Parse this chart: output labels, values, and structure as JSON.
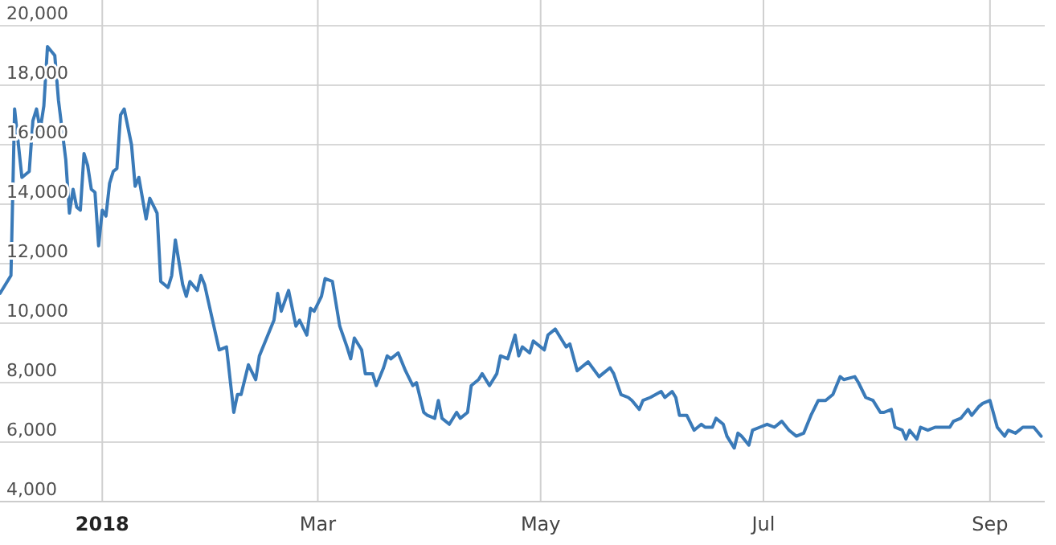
{
  "chart_data": {
    "type": "line",
    "xlim": [
      "2017-12-04",
      "2018-09-16"
    ],
    "ylim": [
      4000,
      20000
    ],
    "yticks": [
      {
        "value": 4000,
        "label": "4,000"
      },
      {
        "value": 6000,
        "label": "6,000"
      },
      {
        "value": 8000,
        "label": "8,000"
      },
      {
        "value": 10000,
        "label": "10,000"
      },
      {
        "value": 12000,
        "label": "12,000"
      },
      {
        "value": 14000,
        "label": "14,000"
      },
      {
        "value": 16000,
        "label": "16,000"
      },
      {
        "value": 18000,
        "label": "18,000"
      },
      {
        "value": 20000,
        "label": "20,000"
      }
    ],
    "xticks": [
      {
        "value": "2018-01-01",
        "label": "2018"
      },
      {
        "value": "2018-03-01",
        "label": "Mar"
      },
      {
        "value": "2018-05-01",
        "label": "May"
      },
      {
        "value": "2018-07-01",
        "label": "Jul"
      },
      {
        "value": "2018-09-01",
        "label": "Sep"
      }
    ],
    "grid": true,
    "marker": "none",
    "line_style": "solid",
    "series": [
      {
        "color": "#3a7ab8",
        "x": [
          "2017-12-04",
          "2017-12-07",
          "2017-12-08",
          "2017-12-10",
          "2017-12-12",
          "2017-12-13",
          "2017-12-14",
          "2017-12-15",
          "2017-12-16",
          "2017-12-17",
          "2017-12-19",
          "2017-12-20",
          "2017-12-22",
          "2017-12-23",
          "2017-12-24",
          "2017-12-25",
          "2017-12-26",
          "2017-12-27",
          "2017-12-28",
          "2017-12-29",
          "2017-12-30",
          "2017-12-31",
          "2018-01-01",
          "2018-01-02",
          "2018-01-03",
          "2018-01-04",
          "2018-01-05",
          "2018-01-06",
          "2018-01-07",
          "2018-01-09",
          "2018-01-10",
          "2018-01-11",
          "2018-01-13",
          "2018-01-14",
          "2018-01-16",
          "2018-01-17",
          "2018-01-19",
          "2018-01-20",
          "2018-01-21",
          "2018-01-23",
          "2018-01-24",
          "2018-01-25",
          "2018-01-27",
          "2018-01-28",
          "2018-01-29",
          "2018-01-31",
          "2018-02-02",
          "2018-02-04",
          "2018-02-06",
          "2018-02-07",
          "2018-02-08",
          "2018-02-10",
          "2018-02-12",
          "2018-02-13",
          "2018-02-15",
          "2018-02-17",
          "2018-02-18",
          "2018-02-19",
          "2018-02-21",
          "2018-02-23",
          "2018-02-24",
          "2018-02-26",
          "2018-02-27",
          "2018-02-28",
          "2018-03-02",
          "2018-03-03",
          "2018-03-05",
          "2018-03-07",
          "2018-03-09",
          "2018-03-10",
          "2018-03-11",
          "2018-03-13",
          "2018-03-14",
          "2018-03-16",
          "2018-03-17",
          "2018-03-19",
          "2018-03-20",
          "2018-03-21",
          "2018-03-23",
          "2018-03-25",
          "2018-03-27",
          "2018-03-28",
          "2018-03-30",
          "2018-03-31",
          "2018-04-02",
          "2018-04-03",
          "2018-04-04",
          "2018-04-06",
          "2018-04-08",
          "2018-04-09",
          "2018-04-11",
          "2018-04-12",
          "2018-04-14",
          "2018-04-15",
          "2018-04-17",
          "2018-04-19",
          "2018-04-20",
          "2018-04-22",
          "2018-04-24",
          "2018-04-25",
          "2018-04-26",
          "2018-04-28",
          "2018-04-29",
          "2018-05-01",
          "2018-05-02",
          "2018-05-03",
          "2018-05-05",
          "2018-05-07",
          "2018-05-08",
          "2018-05-09",
          "2018-05-11",
          "2018-05-12",
          "2018-05-14",
          "2018-05-17",
          "2018-05-18",
          "2018-05-20",
          "2018-05-21",
          "2018-05-23",
          "2018-05-25",
          "2018-05-26",
          "2018-05-28",
          "2018-05-29",
          "2018-05-31",
          "2018-06-03",
          "2018-06-04",
          "2018-06-06",
          "2018-06-07",
          "2018-06-08",
          "2018-06-10",
          "2018-06-12",
          "2018-06-14",
          "2018-06-15",
          "2018-06-17",
          "2018-06-18",
          "2018-06-20",
          "2018-06-21",
          "2018-06-23",
          "2018-06-24",
          "2018-06-25",
          "2018-06-27",
          "2018-06-28",
          "2018-06-30",
          "2018-07-02",
          "2018-07-04",
          "2018-07-06",
          "2018-07-08",
          "2018-07-10",
          "2018-07-12",
          "2018-07-14",
          "2018-07-16",
          "2018-07-18",
          "2018-07-20",
          "2018-07-22",
          "2018-07-23",
          "2018-07-26",
          "2018-07-27",
          "2018-07-29",
          "2018-07-31",
          "2018-08-02",
          "2018-08-03",
          "2018-08-05",
          "2018-08-06",
          "2018-08-08",
          "2018-08-09",
          "2018-08-10",
          "2018-08-12",
          "2018-08-13",
          "2018-08-15",
          "2018-08-17",
          "2018-08-21",
          "2018-08-22",
          "2018-08-24",
          "2018-08-26",
          "2018-08-27",
          "2018-08-29",
          "2018-08-30",
          "2018-09-01",
          "2018-09-03",
          "2018-09-05",
          "2018-09-06",
          "2018-09-08",
          "2018-09-10",
          "2018-09-11",
          "2018-09-13",
          "2018-09-15"
        ],
        "values": [
          11000,
          11600,
          17200,
          14900,
          15100,
          16800,
          17200,
          16500,
          17300,
          19300,
          19000,
          17500,
          15500,
          13700,
          14500,
          13900,
          13800,
          15700,
          15300,
          14500,
          14400,
          12600,
          13800,
          13600,
          14700,
          15100,
          15200,
          17000,
          17200,
          16000,
          14600,
          14900,
          13500,
          14200,
          13700,
          11400,
          11200,
          11600,
          12800,
          11300,
          10900,
          11400,
          11100,
          11600,
          11300,
          10200,
          9100,
          9200,
          7000,
          7600,
          7600,
          8600,
          8100,
          8900,
          9500,
          10100,
          11000,
          10400,
          11100,
          9900,
          10100,
          9600,
          10500,
          10400,
          10900,
          11500,
          11400,
          9900,
          9200,
          8800,
          9500,
          9100,
          8300,
          8300,
          7900,
          8500,
          8900,
          8800,
          9000,
          8400,
          7900,
          8000,
          7000,
          6900,
          6800,
          7400,
          6800,
          6600,
          7000,
          6800,
          7000,
          7900,
          8100,
          8300,
          7900,
          8300,
          8900,
          8800,
          9600,
          8900,
          9200,
          9000,
          9400,
          9200,
          9100,
          9600,
          9800,
          9400,
          9200,
          9300,
          8400,
          8500,
          8700,
          8200,
          8300,
          8500,
          8300,
          7600,
          7500,
          7400,
          7100,
          7400,
          7500,
          7700,
          7500,
          7700,
          7500,
          6900,
          6900,
          6400,
          6600,
          6500,
          6500,
          6800,
          6600,
          6200,
          5800,
          6300,
          6200,
          5900,
          6400,
          6500,
          6600,
          6500,
          6700,
          6400,
          6200,
          6300,
          6900,
          7400,
          7400,
          7600,
          8200,
          8100,
          8200,
          8000,
          7500,
          7400,
          7000,
          7000,
          7100,
          6500,
          6400,
          6100,
          6400,
          6100,
          6500,
          6400,
          6500,
          6500,
          6700,
          6800,
          7100,
          6900,
          7200,
          7300,
          7400,
          6500,
          6200,
          6400,
          6300,
          6500,
          6500,
          6500,
          6200
        ]
      }
    ]
  }
}
